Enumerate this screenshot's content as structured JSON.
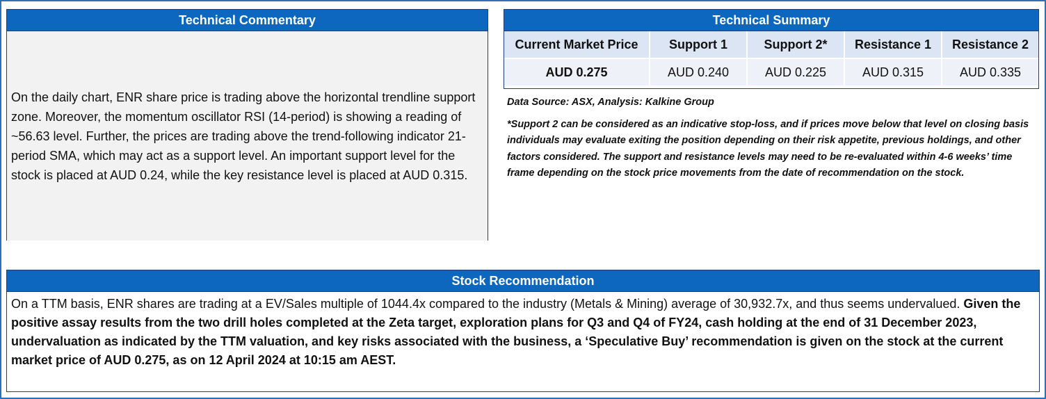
{
  "commentary": {
    "title": "Technical Commentary",
    "text": "On the daily chart, ENR share price is trading above the horizontal trendline support zone. Moreover, the momentum oscillator RSI (14-period) is showing a reading of ~56.63 level. Further, the prices are trading above the trend-following indicator 21-period SMA, which may act as a support level. An important support level for the stock is placed at AUD 0.24, while the key resistance level is placed at AUD 0.315."
  },
  "summary": {
    "title": "Technical Summary",
    "headers": [
      "Current Market Price",
      "Support 1",
      "Support 2*",
      "Resistance 1",
      "Resistance 2"
    ],
    "values": [
      "AUD 0.275",
      "AUD 0.240",
      "AUD 0.225",
      "AUD 0.315",
      "AUD 0.335"
    ],
    "source": "Data Source: ASX, Analysis: Kalkine Group",
    "footnote": "*Support 2 can be considered as an indicative stop-loss, and if prices move below that level on closing basis individuals may evaluate exiting the position depending on their risk appetite, previous holdings, and other factors considered. The support and resistance levels may need to be re-evaluated within 4-6 weeks’ time frame depending on the stock price movements from the date of recommendation on the stock."
  },
  "recommendation": {
    "title": "Stock Recommendation",
    "text_regular": "On a TTM basis, ENR shares are trading at a EV/Sales multiple of 1044.4x compared to the industry (Metals & Mining) average of 30,932.7x, and thus seems undervalued. ",
    "text_bold": "Given the positive assay results from the two drill holes completed at the Zeta target, exploration plans for Q3 and Q4 of FY24, cash holding at the end of 31 December 2023, undervaluation as indicated by the TTM valuation, and key risks associated with the business, a ‘Speculative Buy’ recommendation is given on the stock at the current market price of AUD 0.275, as on 12 April 2024 at 10:15 am AEST."
  },
  "colors": {
    "header_blue": "#0d67bf",
    "outer_border": "#2e6fb7"
  }
}
